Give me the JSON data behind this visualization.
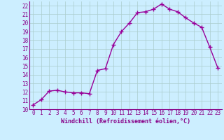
{
  "x": [
    0,
    1,
    2,
    3,
    4,
    5,
    6,
    7,
    8,
    9,
    10,
    11,
    12,
    13,
    14,
    15,
    16,
    17,
    18,
    19,
    20,
    21,
    22,
    23
  ],
  "y": [
    10.5,
    11.1,
    12.1,
    12.2,
    12.0,
    11.9,
    11.9,
    11.8,
    14.5,
    14.7,
    17.5,
    19.0,
    20.0,
    21.2,
    21.3,
    21.6,
    22.2,
    21.6,
    21.3,
    20.6,
    20.0,
    19.5,
    17.2,
    14.8
  ],
  "line_color": "#990099",
  "marker": "+",
  "marker_size": 4,
  "xlabel": "Windchill (Refroidissement éolien,°C)",
  "xlim": [
    -0.5,
    23.5
  ],
  "ylim": [
    10,
    22.5
  ],
  "yticks": [
    10,
    11,
    12,
    13,
    14,
    15,
    16,
    17,
    18,
    19,
    20,
    21,
    22
  ],
  "xticks": [
    0,
    1,
    2,
    3,
    4,
    5,
    6,
    7,
    8,
    9,
    10,
    11,
    12,
    13,
    14,
    15,
    16,
    17,
    18,
    19,
    20,
    21,
    22,
    23
  ],
  "background_color": "#cceeff",
  "grid_color": "#aacccc",
  "line_width": 1.0,
  "tick_color": "#880088",
  "label_color": "#880088",
  "tick_fontsize": 5.5,
  "xlabel_fontsize": 6.0
}
